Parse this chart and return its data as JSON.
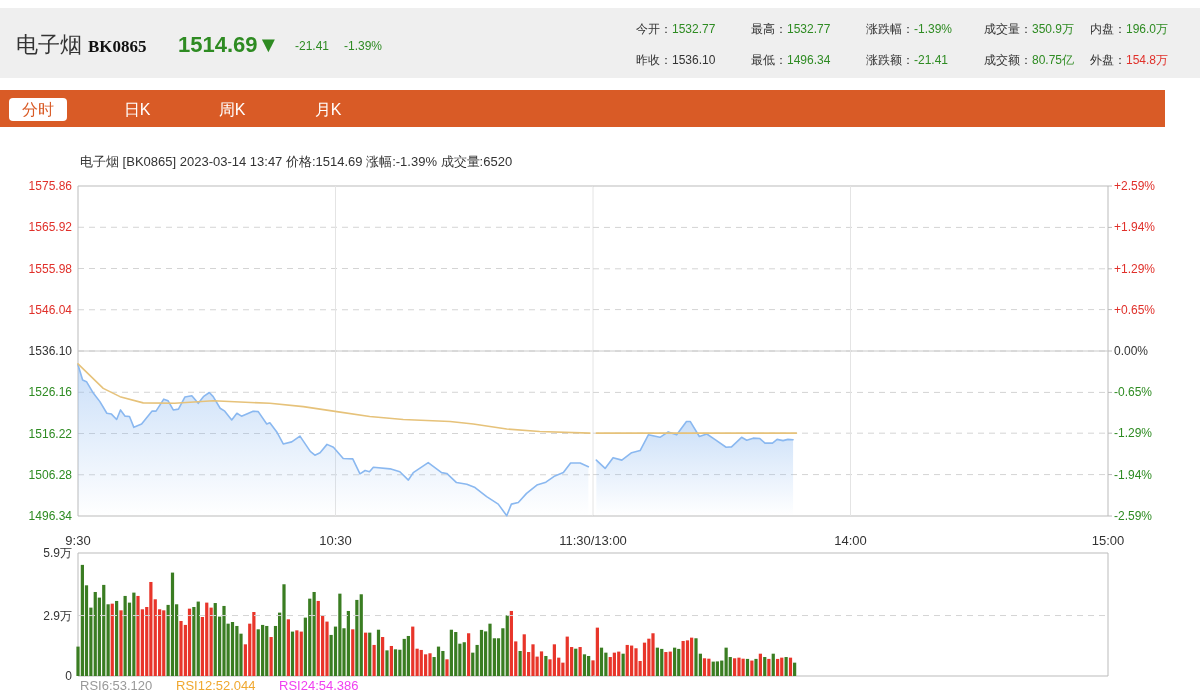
{
  "chart_data": [
    {
      "type": "line",
      "title": "电子烟 BK0865",
      "subtitle": "电子烟 [BK0865]  2023-03-14 13:47  价格:1514.69  涨幅:-1.39%  成交量:6520",
      "annotations": [
        "1514.69▼",
        "-21.41",
        "-1.39%",
        "今开：1532.77",
        "最高：1532.77",
        "涨跌幅：-1.39%",
        "成交量：350.9万",
        "内盘：196.0万",
        "昨收：1536.10",
        "最低：1496.34",
        "涨跌额：-21.41",
        "成交额：80.75亿",
        "外盘：154.8万",
        "分时",
        "日K",
        "周K",
        "月K"
      ],
      "xlim": [
        9.5,
        11.5
      ],
      "xticks": [
        {
          "value": 9.5,
          "label": "9:30"
        },
        {
          "value": 10.5,
          "label": "10:30"
        },
        {
          "value": 11.5,
          "label": "11:30/13:00"
        }
      ],
      "ylim": [
        1496.34,
        1575.86
      ],
      "yticks": [
        1496.34,
        1506.28,
        1516.22,
        1526.16,
        {
          "value": 1536.1,
          "label": "1536.10"
        },
        1546.04,
        1555.98,
        1565.92,
        1575.86
      ],
      "grid": "y",
      "ref_lines": [
        {
          "axis": "y",
          "value": 1536.1,
          "color": "#c8c8c8"
        },
        {
          "axis": "x",
          "value": 10.5,
          "color": "#e4e4e4"
        },
        {
          "axis": "x",
          "value": 11.5,
          "color": "#e4e4e4"
        }
      ],
      "series": [
        {
          "type": "area",
          "color": "#8ab8f0",
          "x": [
            9.5,
            9.518,
            9.533,
            9.56,
            9.585,
            9.612,
            9.63,
            9.65,
            9.665,
            9.683,
            9.7,
            9.717,
            9.747,
            9.787,
            9.803,
            9.833,
            9.85,
            9.87,
            9.89,
            9.915,
            9.942,
            9.967,
            9.987,
            10.01,
            10.025,
            10.052,
            10.07,
            10.097,
            10.117,
            10.135,
            10.18,
            10.2,
            10.233,
            10.245,
            10.272,
            10.297,
            10.33,
            10.362,
            10.402,
            10.42,
            10.44,
            10.467,
            10.492,
            10.53,
            10.567,
            10.595,
            10.615,
            10.632,
            10.647,
            10.712,
            10.75,
            10.783,
            10.802,
            10.86,
            10.912,
            10.932,
            10.97,
            11.01,
            11.042,
            11.087,
            11.132,
            11.165,
            11.183,
            11.21,
            11.242,
            11.282,
            11.317,
            11.352,
            11.385,
            11.413,
            11.45,
            11.482
          ],
          "values": [
            1532.8,
            1529.1,
            1528.7,
            1525.9,
            1523.9,
            1521.1,
            1520.9,
            1519.6,
            1521.9,
            1520.4,
            1520.3,
            1517.7,
            1518.5,
            1521.6,
            1521.6,
            1524.5,
            1524.1,
            1521.9,
            1522.1,
            1525.0,
            1525.3,
            1523.5,
            1525.1,
            1526.1,
            1525.1,
            1522.3,
            1521.6,
            1519.5,
            1521.1,
            1520.4,
            1521.6,
            1521.5,
            1518.5,
            1518.8,
            1516.6,
            1513.7,
            1514.2,
            1515.6,
            1511.9,
            1511.0,
            1511.6,
            1513.6,
            1512.9,
            1510.2,
            1510.1,
            1506.5,
            1507.3,
            1507.0,
            1508.1,
            1507.7,
            1507.0,
            1505.0,
            1506.8,
            1509.2,
            1506.8,
            1506.6,
            1504.4,
            1504.0,
            1503.2,
            1501.0,
            1499.2,
            1496.4,
            1499.2,
            1499.6,
            1501.8,
            1503.8,
            1504.5,
            1506.0,
            1506.8,
            1509.1,
            1509.1,
            1508.2
          ]
        },
        {
          "color": "#e6c27a",
          "x": [
            9.5,
            9.598,
            9.663,
            9.753,
            9.875,
            10.025,
            10.245,
            10.375,
            10.505,
            10.633,
            10.763,
            10.945,
            11.035,
            11.165,
            11.293,
            11.488
          ],
          "values": [
            1533.0,
            1527.1,
            1525.1,
            1523.6,
            1523.5,
            1524.1,
            1523.5,
            1522.7,
            1521.5,
            1520.3,
            1519.6,
            1519.1,
            1518.5,
            1517.3,
            1516.7,
            1516.3
          ]
        }
      ]
    },
    {
      "type": "line",
      "xlim": [
        13,
        15
      ],
      "xticks": [
        {
          "value": 14,
          "label": "14:00"
        },
        {
          "value": 15,
          "label": "15:00"
        }
      ],
      "ylim": [
        1496.34,
        1575.86
      ],
      "y2lim": [
        -2.59,
        2.59
      ],
      "y2ticks": [
        {
          "value": -2.59,
          "label": "-2.59%"
        },
        {
          "value": -1.94,
          "label": "-1.94%"
        },
        {
          "value": -1.29,
          "label": "-1.29%"
        },
        {
          "value": -0.65,
          "label": "-0.65%"
        },
        {
          "value": 0,
          "label": "0.00%"
        },
        {
          "value": 0.65,
          "label": "+0.65%"
        },
        {
          "value": 1.29,
          "label": "+1.29%"
        },
        {
          "value": 1.94,
          "label": "+1.94%"
        },
        {
          "value": 2.59,
          "label": "+2.59%"
        }
      ],
      "grid": "y",
      "ref_lines": [
        {
          "axis": "y",
          "value": 1536.1,
          "color": "#c8c8c8"
        },
        {
          "axis": "x",
          "value": 14,
          "color": "#e4e4e4"
        }
      ],
      "series": [
        {
          "type": "area",
          "color": "#8ab8f0",
          "x": [
            13.013,
            13.047,
            13.078,
            13.112,
            13.15,
            13.183,
            13.215,
            13.26,
            13.292,
            13.325,
            13.363,
            13.378,
            13.413,
            13.442,
            13.473,
            13.517,
            13.538,
            13.577,
            13.597,
            13.622,
            13.648,
            13.668,
            13.697,
            13.715,
            13.738,
            13.757,
            13.777
          ],
          "values": [
            1509.8,
            1507.8,
            1510.4,
            1509.8,
            1511.6,
            1512.1,
            1515.9,
            1515.3,
            1516.6,
            1515.9,
            1519.1,
            1519.1,
            1515.5,
            1516.1,
            1514.8,
            1512.9,
            1513.0,
            1515.3,
            1514.6,
            1515.1,
            1515.0,
            1513.9,
            1513.9,
            1514.8,
            1514.5,
            1514.8,
            1514.7
          ]
        },
        {
          "color": "#e6c27a",
          "x": [
            13.013,
            13.358,
            13.79
          ],
          "values": [
            1516.3,
            1516.3,
            1516.3
          ]
        }
      ]
    },
    {
      "type": "bar",
      "annotations": [
        "RSI6:53.120",
        "RSI12:52.044",
        "RSI24:54.386"
      ],
      "x": [
        9.5,
        9.517,
        9.533,
        9.55,
        9.567,
        9.583,
        9.6,
        9.617,
        9.633,
        9.65,
        9.667,
        9.683,
        9.7,
        9.717,
        9.733,
        9.75,
        9.767,
        9.783,
        9.8,
        9.817,
        9.833,
        9.85,
        9.867,
        9.883,
        9.9,
        9.917,
        9.933,
        9.95,
        9.967,
        9.983,
        10.0,
        10.017,
        10.033,
        10.05,
        10.067,
        10.083,
        10.1,
        10.117,
        10.133,
        10.15,
        10.167,
        10.183,
        10.2,
        10.217,
        10.233,
        10.25,
        10.267,
        10.283,
        10.3,
        10.317,
        10.333,
        10.35,
        10.367,
        10.383,
        10.4,
        10.417,
        10.433,
        10.45,
        10.467,
        10.483,
        10.5,
        10.517,
        10.533,
        10.55,
        10.567,
        10.583,
        10.6,
        10.617,
        10.633,
        10.65,
        10.667,
        10.683,
        10.7,
        10.717,
        10.733,
        10.75,
        10.767,
        10.783,
        10.8,
        10.817,
        10.833,
        10.85,
        10.867,
        10.883,
        10.9,
        10.917,
        10.933,
        10.95,
        10.967,
        10.983,
        11.0,
        11.017,
        11.033,
        11.05,
        11.067,
        11.083,
        11.1,
        11.117,
        11.133,
        11.15,
        11.167,
        11.183,
        11.2,
        11.217,
        11.233,
        11.25,
        11.267,
        11.283,
        11.3,
        11.317,
        11.333,
        11.35,
        11.367,
        11.383,
        11.4,
        11.417,
        11.433,
        11.45,
        11.467,
        11.483,
        11.5
      ],
      "values": [
        1.41,
        5.33,
        4.35,
        3.28,
        4.03,
        3.76,
        4.37,
        3.44,
        3.47,
        3.6,
        3.15,
        3.84,
        3.52,
        4.0,
        3.84,
        3.2,
        3.31,
        4.51,
        3.68,
        3.2,
        3.15,
        3.41,
        4.96,
        3.44,
        2.64,
        2.45,
        3.23,
        3.31,
        3.57,
        2.83,
        3.52,
        3.28,
        3.5,
        2.85,
        3.36,
        2.51,
        2.59,
        2.4,
        2.03,
        1.52,
        2.51,
        3.07,
        2.24,
        2.45,
        2.4,
        1.87,
        2.4,
        3.04,
        4.4,
        2.72,
        2.13,
        2.19,
        2.13,
        2.8,
        3.71,
        4.03,
        3.6,
        2.91,
        2.61,
        1.97,
        2.37,
        3.95,
        2.29,
        3.12,
        2.24,
        3.65,
        3.92,
        2.08,
        2.08,
        1.49,
        2.22,
        1.87,
        1.23,
        1.44,
        1.28,
        1.26,
        1.78,
        1.92,
        2.37,
        1.31,
        1.25,
        1.04,
        1.09,
        0.91,
        1.41,
        1.2,
        0.8,
        2.22,
        2.11,
        1.55,
        1.62,
        2.05,
        1.12,
        1.49,
        2.21,
        2.14,
        2.51,
        1.81,
        1.81,
        2.29,
        2.91,
        3.12,
        1.66,
        1.2,
        2.0,
        1.15,
        1.52,
        0.93,
        1.18,
        0.96,
        0.8,
        1.52,
        0.88,
        0.64,
        1.89,
        1.39,
        1.31,
        1.39,
        1.04,
        0.96,
        0.75
      ],
      "colors": [
        "#3a7d22",
        "#3a7d22",
        "#3a7d22",
        "#3a7d22",
        "#3a7d22",
        "#3a7d22",
        "#3a7d22",
        "#3a7d22",
        "#e8352a",
        "#3a7d22",
        "#e8352a",
        "#3a7d22",
        "#3a7d22",
        "#3a7d22",
        "#e8352a",
        "#e8352a",
        "#e8352a",
        "#e8352a",
        "#e8352a",
        "#e8352a",
        "#e8352a",
        "#3a7d22",
        "#3a7d22",
        "#3a7d22",
        "#e8352a",
        "#e8352a",
        "#e8352a",
        "#3a7d22",
        "#3a7d22",
        "#e8352a",
        "#e8352a",
        "#e8352a",
        "#3a7d22",
        "#3a7d22",
        "#3a7d22",
        "#3a7d22",
        "#3a7d22",
        "#3a7d22",
        "#3a7d22",
        "#e8352a",
        "#e8352a",
        "#e8352a",
        "#3a7d22",
        "#3a7d22",
        "#3a7d22",
        "#e8352a",
        "#3a7d22",
        "#3a7d22",
        "#3a7d22",
        "#e8352a",
        "#3a7d22",
        "#e8352a",
        "#e8352a",
        "#3a7d22",
        "#3a7d22",
        "#3a7d22",
        "#e8352a",
        "#e8352a",
        "#e8352a",
        "#3a7d22",
        "#3a7d22",
        "#3a7d22",
        "#3a7d22",
        "#3a7d22",
        "#e8352a",
        "#3a7d22",
        "#3a7d22",
        "#e8352a",
        "#3a7d22",
        "#e8352a",
        "#3a7d22",
        "#e8352a",
        "#3a7d22",
        "#e8352a",
        "#3a7d22",
        "#3a7d22",
        "#3a7d22",
        "#3a7d22",
        "#e8352a",
        "#e8352a",
        "#e8352a",
        "#e8352a",
        "#e8352a",
        "#3a7d22",
        "#3a7d22",
        "#3a7d22",
        "#e8352a",
        "#3a7d22",
        "#3a7d22",
        "#3a7d22",
        "#3a7d22",
        "#e8352a",
        "#3a7d22",
        "#3a7d22",
        "#3a7d22",
        "#3a7d22",
        "#3a7d22",
        "#3a7d22",
        "#3a7d22",
        "#3a7d22",
        "#3a7d22",
        "#e8352a",
        "#e8352a",
        "#3a7d22",
        "#e8352a",
        "#e8352a",
        "#e8352a",
        "#e8352a",
        "#e8352a",
        "#3a7d22",
        "#e8352a",
        "#e8352a",
        "#e8352a",
        "#e8352a",
        "#e8352a",
        "#e8352a",
        "#3a7d22",
        "#e8352a",
        "#3a7d22",
        "#3a7d22",
        "#e8352a"
      ],
      "xlim": [
        9.5,
        11.5
      ],
      "ylim": [
        0,
        5.9
      ],
      "yticks": [
        0,
        {
          "value": 2.9,
          "label": "2.9万"
        },
        {
          "value": 5.9,
          "label": "5.9万"
        }
      ],
      "tick_labels": "y",
      "grid": "y"
    },
    {
      "type": "bar",
      "x": [
        13.017,
        13.033,
        13.05,
        13.067,
        13.083,
        13.1,
        13.117,
        13.133,
        13.15,
        13.167,
        13.183,
        13.2,
        13.217,
        13.233,
        13.25,
        13.267,
        13.283,
        13.3,
        13.317,
        13.333,
        13.35,
        13.367,
        13.383,
        13.4,
        13.417,
        13.433,
        13.45,
        13.467,
        13.483,
        13.5,
        13.517,
        13.533,
        13.55,
        13.567,
        13.583,
        13.6,
        13.617,
        13.633,
        13.65,
        13.667,
        13.683,
        13.7,
        13.717,
        13.733,
        13.75,
        13.767,
        13.783
      ],
      "values": [
        2.32,
        1.36,
        1.12,
        0.91,
        1.12,
        1.17,
        1.07,
        1.49,
        1.46,
        1.33,
        0.72,
        1.6,
        1.79,
        2.05,
        1.36,
        1.3,
        1.15,
        1.17,
        1.36,
        1.3,
        1.68,
        1.71,
        1.84,
        1.81,
        1.07,
        0.85,
        0.83,
        0.69,
        0.7,
        0.74,
        1.36,
        0.91,
        0.85,
        0.88,
        0.83,
        0.82,
        0.74,
        0.82,
        1.07,
        0.91,
        0.82,
        1.07,
        0.82,
        0.88,
        0.91,
        0.88,
        0.64
      ],
      "colors": [
        "#e8352a",
        "#3a7d22",
        "#3a7d22",
        "#e8352a",
        "#e8352a",
        "#e8352a",
        "#3a7d22",
        "#e8352a",
        "#e8352a",
        "#e8352a",
        "#e8352a",
        "#e8352a",
        "#e8352a",
        "#e8352a",
        "#3a7d22",
        "#3a7d22",
        "#e8352a",
        "#e8352a",
        "#3a7d22",
        "#3a7d22",
        "#e8352a",
        "#e8352a",
        "#e8352a",
        "#3a7d22",
        "#3a7d22",
        "#e8352a",
        "#e8352a",
        "#3a7d22",
        "#3a7d22",
        "#3a7d22",
        "#3a7d22",
        "#3a7d22",
        "#e8352a",
        "#e8352a",
        "#e8352a",
        "#3a7d22",
        "#e8352a",
        "#3a7d22",
        "#e8352a",
        "#3a7d22",
        "#e8352a",
        "#3a7d22",
        "#e8352a",
        "#e8352a",
        "#3a7d22",
        "#e8352a",
        "#3a7d22"
      ],
      "xlim": [
        13,
        15
      ],
      "ylim": [
        0,
        5.9
      ],
      "yticks": [
        0,
        2.9,
        5.9
      ],
      "tick_labels": false,
      "grid": "y"
    }
  ]
}
